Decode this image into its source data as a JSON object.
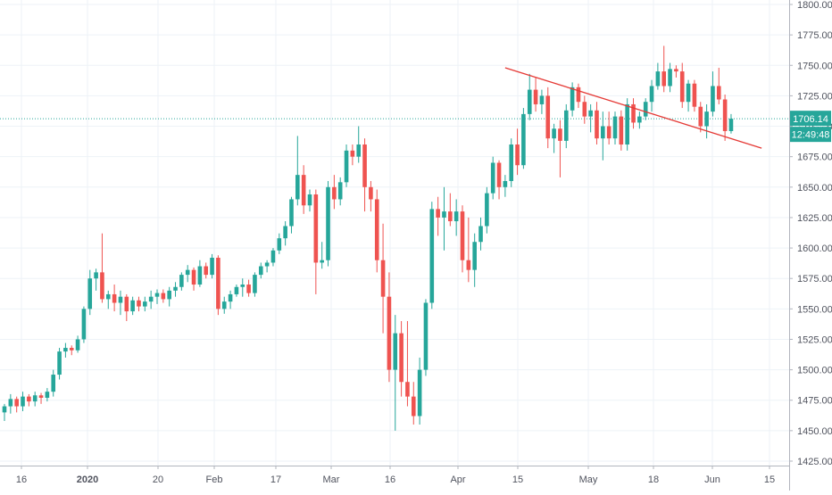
{
  "chart_data": {
    "type": "candlestick",
    "y_axis": {
      "position": "right",
      "ylim": [
        1420,
        1805
      ],
      "ticks": [
        "1800.00",
        "1775.00",
        "1750.00",
        "1725.00",
        "1700.00",
        "1675.00",
        "1650.00",
        "1625.00",
        "1600.00",
        "1575.00",
        "1550.00",
        "1525.00",
        "1500.00",
        "1475.00",
        "1450.00",
        "1425.00"
      ]
    },
    "x_axis": {
      "tick_labels": [
        {
          "label": "16",
          "bold": false
        },
        {
          "label": "2020",
          "bold": true
        },
        {
          "label": "20",
          "bold": false
        },
        {
          "label": "Feb",
          "bold": false
        },
        {
          "label": "17",
          "bold": false
        },
        {
          "label": "Mar",
          "bold": false
        },
        {
          "label": "16",
          "bold": false
        },
        {
          "label": "Apr",
          "bold": false
        },
        {
          "label": "15",
          "bold": false
        },
        {
          "label": "May",
          "bold": false
        },
        {
          "label": "18",
          "bold": false
        },
        {
          "label": "Jun",
          "bold": false
        },
        {
          "label": "15",
          "bold": false
        }
      ]
    },
    "candles": [
      [
        1465,
        1472,
        1458,
        1470
      ],
      [
        1470,
        1480,
        1464,
        1476
      ],
      [
        1476,
        1478,
        1465,
        1470
      ],
      [
        1470,
        1482,
        1466,
        1478
      ],
      [
        1478,
        1480,
        1470,
        1474
      ],
      [
        1474,
        1482,
        1470,
        1479
      ],
      [
        1479,
        1481,
        1472,
        1477
      ],
      [
        1477,
        1485,
        1474,
        1482
      ],
      [
        1482,
        1500,
        1478,
        1496
      ],
      [
        1496,
        1518,
        1492,
        1515
      ],
      [
        1515,
        1522,
        1510,
        1518
      ],
      [
        1518,
        1520,
        1512,
        1516
      ],
      [
        1516,
        1528,
        1514,
        1525
      ],
      [
        1525,
        1552,
        1522,
        1550
      ],
      [
        1550,
        1582,
        1545,
        1575
      ],
      [
        1575,
        1583,
        1565,
        1580
      ],
      [
        1580,
        1612,
        1555,
        1558
      ],
      [
        1558,
        1565,
        1550,
        1562
      ],
      [
        1562,
        1570,
        1548,
        1555
      ],
      [
        1555,
        1565,
        1545,
        1560
      ],
      [
        1560,
        1562,
        1540,
        1548
      ],
      [
        1548,
        1560,
        1545,
        1557
      ],
      [
        1557,
        1560,
        1548,
        1552
      ],
      [
        1552,
        1560,
        1548,
        1556
      ],
      [
        1556,
        1565,
        1550,
        1560
      ],
      [
        1560,
        1566,
        1554,
        1563
      ],
      [
        1563,
        1566,
        1555,
        1558
      ],
      [
        1558,
        1568,
        1552,
        1565
      ],
      [
        1565,
        1572,
        1560,
        1568
      ],
      [
        1568,
        1580,
        1565,
        1578
      ],
      [
        1578,
        1586,
        1572,
        1582
      ],
      [
        1582,
        1584,
        1565,
        1570
      ],
      [
        1570,
        1590,
        1568,
        1585
      ],
      [
        1585,
        1588,
        1575,
        1578
      ],
      [
        1578,
        1595,
        1575,
        1592
      ],
      [
        1592,
        1594,
        1545,
        1550
      ],
      [
        1550,
        1560,
        1546,
        1556
      ],
      [
        1556,
        1565,
        1550,
        1562
      ],
      [
        1562,
        1570,
        1560,
        1568
      ],
      [
        1568,
        1575,
        1560,
        1570
      ],
      [
        1570,
        1574,
        1560,
        1563
      ],
      [
        1563,
        1580,
        1560,
        1578
      ],
      [
        1578,
        1588,
        1575,
        1585
      ],
      [
        1585,
        1590,
        1580,
        1588
      ],
      [
        1588,
        1600,
        1585,
        1598
      ],
      [
        1598,
        1612,
        1595,
        1608
      ],
      [
        1608,
        1622,
        1602,
        1618
      ],
      [
        1618,
        1642,
        1612,
        1640
      ],
      [
        1640,
        1692,
        1635,
        1660
      ],
      [
        1660,
        1668,
        1628,
        1635
      ],
      [
        1635,
        1648,
        1630,
        1644
      ],
      [
        1644,
        1648,
        1562,
        1588
      ],
      [
        1588,
        1605,
        1583,
        1590
      ],
      [
        1590,
        1655,
        1585,
        1650
      ],
      [
        1650,
        1660,
        1632,
        1640
      ],
      [
        1640,
        1658,
        1635,
        1654
      ],
      [
        1654,
        1685,
        1650,
        1680
      ],
      [
        1680,
        1685,
        1668,
        1675
      ],
      [
        1675,
        1700,
        1670,
        1685
      ],
      [
        1685,
        1690,
        1630,
        1650
      ],
      [
        1650,
        1655,
        1630,
        1640
      ],
      [
        1640,
        1648,
        1580,
        1590
      ],
      [
        1590,
        1620,
        1530,
        1560
      ],
      [
        1560,
        1580,
        1490,
        1500
      ],
      [
        1500,
        1545,
        1450,
        1530
      ],
      [
        1530,
        1540,
        1478,
        1490
      ],
      [
        1490,
        1540,
        1470,
        1478
      ],
      [
        1478,
        1490,
        1455,
        1462
      ],
      [
        1462,
        1510,
        1455,
        1500
      ],
      [
        1500,
        1558,
        1495,
        1555
      ],
      [
        1555,
        1638,
        1550,
        1632
      ],
      [
        1632,
        1642,
        1610,
        1625
      ],
      [
        1625,
        1650,
        1598,
        1630
      ],
      [
        1630,
        1645,
        1618,
        1622
      ],
      [
        1622,
        1640,
        1610,
        1630
      ],
      [
        1630,
        1635,
        1580,
        1590
      ],
      [
        1590,
        1625,
        1572,
        1582
      ],
      [
        1582,
        1612,
        1568,
        1605
      ],
      [
        1605,
        1625,
        1598,
        1618
      ],
      [
        1618,
        1650,
        1612,
        1645
      ],
      [
        1645,
        1675,
        1640,
        1670
      ],
      [
        1670,
        1672,
        1640,
        1650
      ],
      [
        1650,
        1660,
        1642,
        1655
      ],
      [
        1655,
        1690,
        1650,
        1685
      ],
      [
        1685,
        1698,
        1660,
        1668
      ],
      [
        1668,
        1715,
        1665,
        1710
      ],
      [
        1710,
        1743,
        1705,
        1730
      ],
      [
        1730,
        1740,
        1712,
        1718
      ],
      [
        1718,
        1730,
        1710,
        1725
      ],
      [
        1725,
        1732,
        1682,
        1690
      ],
      [
        1690,
        1702,
        1678,
        1698
      ],
      [
        1698,
        1705,
        1658,
        1688
      ],
      [
        1688,
        1718,
        1682,
        1713
      ],
      [
        1713,
        1736,
        1708,
        1732
      ],
      [
        1732,
        1735,
        1715,
        1720
      ],
      [
        1720,
        1725,
        1702,
        1708
      ],
      [
        1708,
        1718,
        1695,
        1713
      ],
      [
        1713,
        1720,
        1685,
        1690
      ],
      [
        1690,
        1712,
        1672,
        1700
      ],
      [
        1700,
        1712,
        1685,
        1690
      ],
      [
        1690,
        1712,
        1685,
        1708
      ],
      [
        1708,
        1713,
        1680,
        1685
      ],
      [
        1685,
        1723,
        1680,
        1718
      ],
      [
        1718,
        1723,
        1698,
        1703
      ],
      [
        1703,
        1712,
        1698,
        1708
      ],
      [
        1708,
        1723,
        1705,
        1720
      ],
      [
        1720,
        1738,
        1712,
        1733
      ],
      [
        1733,
        1752,
        1730,
        1745
      ],
      [
        1745,
        1766,
        1728,
        1733
      ],
      [
        1733,
        1752,
        1728,
        1747
      ],
      [
        1747,
        1750,
        1740,
        1745
      ],
      [
        1745,
        1752,
        1715,
        1720
      ],
      [
        1720,
        1738,
        1712,
        1735
      ],
      [
        1735,
        1738,
        1712,
        1716
      ],
      [
        1716,
        1720,
        1695,
        1700
      ],
      [
        1700,
        1718,
        1690,
        1712
      ],
      [
        1712,
        1745,
        1708,
        1733
      ],
      [
        1733,
        1748,
        1718,
        1722
      ],
      [
        1722,
        1726,
        1688,
        1696
      ],
      [
        1696,
        1710,
        1694,
        1706.14
      ]
    ],
    "trendline": {
      "start": {
        "candle": 82,
        "value": 1748
      },
      "end": {
        "candle": 124,
        "value": 1682
      }
    },
    "last_price": {
      "label": "1706.14",
      "value": 1706.14,
      "countdown": "12:49:48"
    },
    "colors": {
      "up": "#26a69a",
      "down": "#ef5350",
      "trendline": "#e53935",
      "grid": "#edf2f7",
      "axis_text": "#50535e",
      "price_line": "#26a69a"
    }
  }
}
